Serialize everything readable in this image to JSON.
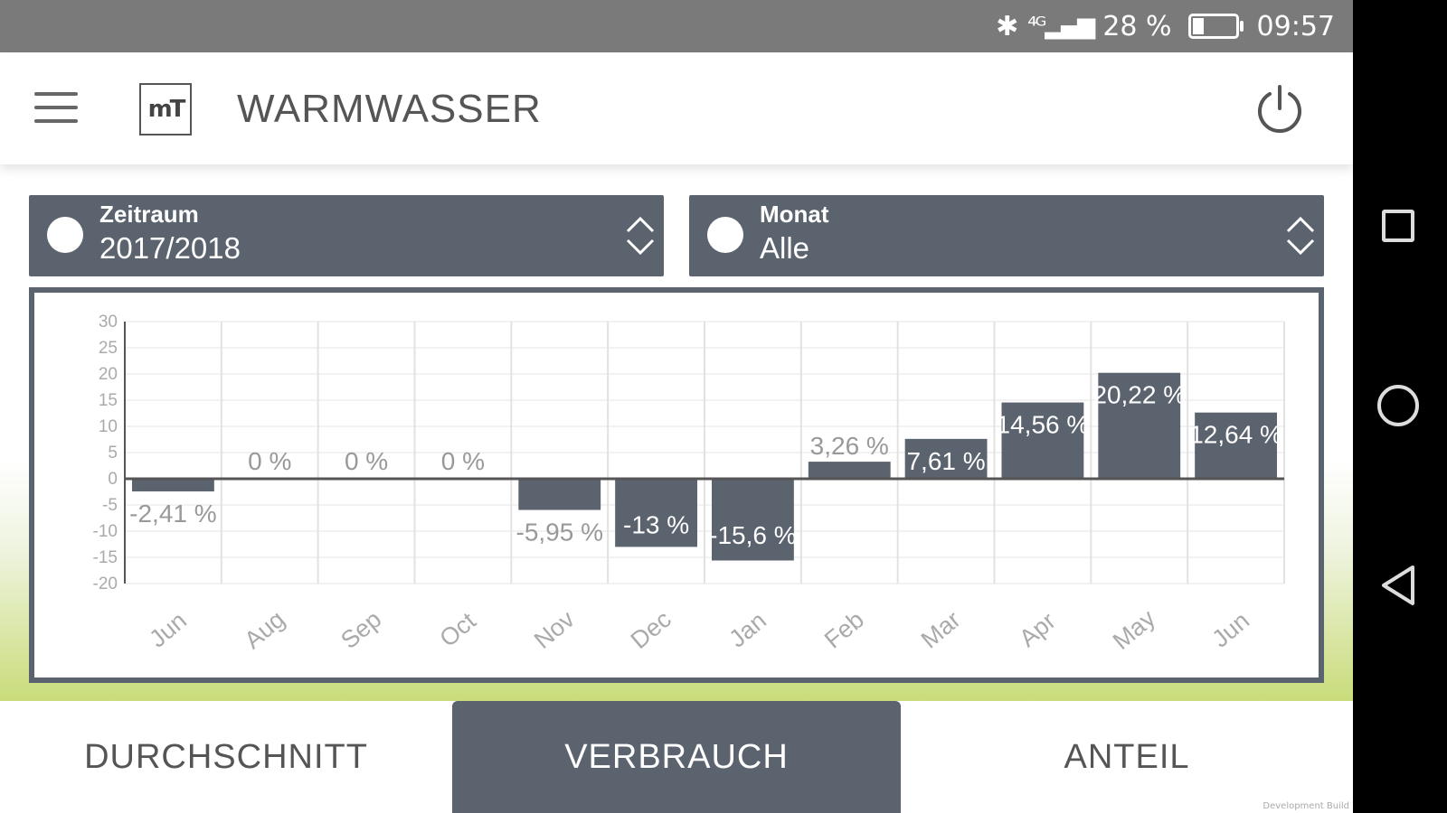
{
  "status_bar": {
    "signal": "⁴ᴳ",
    "battery_text": "28 %",
    "battery_level": 0.28,
    "time": "09:57"
  },
  "header": {
    "logo_text": "mT",
    "title": "WARMWASSER"
  },
  "filters": {
    "zeitraum": {
      "label": "Zeitraum",
      "value": "2017/2018"
    },
    "monat": {
      "label": "Monat",
      "value": "Alle"
    }
  },
  "chart_data": {
    "type": "bar",
    "categories": [
      "Jun",
      "Aug",
      "Sep",
      "Oct",
      "Nov",
      "Dec",
      "Jan",
      "Feb",
      "Mar",
      "Apr",
      "May",
      "Jun"
    ],
    "values": [
      -2.41,
      0,
      0,
      0,
      -5.95,
      -13,
      -15.6,
      3.26,
      7.61,
      14.56,
      20.22,
      12.64
    ],
    "data_labels": [
      "-2,41 %",
      "0 %",
      "0 %",
      "0 %",
      "-5,95 %",
      "-13 %",
      "-15,6 %",
      "3,26 %",
      "7,61 %",
      "14,56 %",
      "20,22 %",
      "12,64 %"
    ],
    "yticks": [
      30,
      25,
      20,
      15,
      10,
      5,
      0,
      -5,
      -10,
      -15,
      -20
    ],
    "ylim": [
      -20,
      30
    ],
    "grid": true,
    "bar_color": "#5b636f"
  },
  "tabs": [
    {
      "label": "DURCHSCHNITT",
      "active": false
    },
    {
      "label": "VERBRAUCH",
      "active": true
    },
    {
      "label": "ANTEIL",
      "active": false
    }
  ],
  "watermark": "Development Build"
}
